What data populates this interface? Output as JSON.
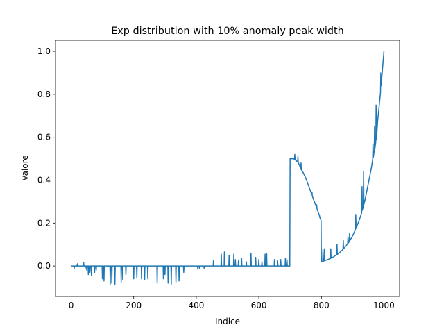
{
  "chart_data": {
    "type": "line",
    "title": "Exp distribution with 10% anomaly peak width",
    "x_label": "Indice",
    "y_label": "Valore",
    "color": "#1f77b4",
    "xlim": [
      -50,
      1050
    ],
    "ylim": [
      -0.142,
      1.052
    ],
    "xticks": [
      0,
      200,
      400,
      600,
      800,
      1000
    ],
    "yticks": [
      {
        "value": 0,
        "label": "0.0"
      },
      {
        "value": 0.2,
        "label": "0.2"
      },
      {
        "value": 0.4,
        "label": "0.4"
      },
      {
        "value": 0.6,
        "label": "0.6"
      },
      {
        "value": 0.8,
        "label": "0.8"
      },
      {
        "value": 1,
        "label": "1.0"
      }
    ],
    "x": [
      0,
      9,
      10,
      11,
      19,
      20,
      21,
      39,
      40,
      41,
      44,
      45,
      46,
      49,
      50,
      51,
      54,
      55,
      56,
      59,
      60,
      61,
      64,
      65,
      66,
      74,
      75,
      76,
      79,
      80,
      81,
      99,
      100,
      101,
      104,
      105,
      106,
      124,
      125,
      126,
      129,
      130,
      131,
      139,
      140,
      141,
      159,
      160,
      161,
      164,
      165,
      166,
      174,
      175,
      176,
      199,
      200,
      201,
      209,
      210,
      211,
      224,
      225,
      226,
      234,
      235,
      236,
      244,
      245,
      246,
      274,
      275,
      276,
      294,
      295,
      296,
      299,
      300,
      301,
      309,
      310,
      311,
      319,
      320,
      321,
      334,
      335,
      336,
      344,
      345,
      346,
      359,
      360,
      361,
      404,
      405,
      406,
      409,
      410,
      411,
      424,
      425,
      426,
      454,
      455,
      456,
      479,
      480,
      481,
      489,
      490,
      491,
      504,
      505,
      506,
      519,
      520,
      521,
      524,
      525,
      526,
      534,
      535,
      536,
      544,
      545,
      546,
      559,
      560,
      561,
      574,
      575,
      576,
      589,
      590,
      591,
      599,
      600,
      601,
      609,
      610,
      611,
      619,
      620,
      621,
      624,
      625,
      626,
      649,
      650,
      651,
      659,
      660,
      661,
      669,
      670,
      671,
      684,
      685,
      686,
      689,
      690,
      691,
      699,
      700,
      710,
      714,
      715,
      716,
      720,
      724,
      725,
      726,
      730,
      734,
      735,
      736,
      740,
      750,
      760,
      769,
      770,
      771,
      780,
      784,
      785,
      786,
      790,
      794,
      795,
      796,
      799,
      800,
      804,
      805,
      806,
      809,
      810,
      811,
      820,
      829,
      830,
      831,
      840,
      849,
      850,
      851,
      860,
      869,
      870,
      871,
      880,
      884,
      885,
      886,
      889,
      890,
      891,
      900,
      909,
      910,
      911,
      920,
      929,
      930,
      931,
      934,
      935,
      936,
      940,
      960,
      964,
      965,
      966,
      969,
      970,
      971,
      974,
      975,
      976,
      980,
      989,
      990,
      991,
      1000
    ],
    "values": [
      0,
      0,
      -0.01,
      0,
      0,
      0.01,
      0,
      0,
      0.015,
      0,
      0,
      -0.01,
      0,
      0,
      -0.02,
      0,
      0,
      -0.04,
      0,
      0,
      -0.03,
      0,
      0,
      -0.045,
      0,
      0,
      -0.03,
      0,
      0,
      -0.02,
      0,
      0,
      -0.06,
      0,
      0,
      -0.07,
      0,
      0,
      -0.085,
      0,
      0,
      -0.08,
      0,
      0,
      -0.085,
      0,
      0,
      -0.075,
      0,
      0,
      -0.065,
      0,
      0,
      -0.04,
      0,
      0,
      -0.06,
      0,
      0,
      -0.055,
      0,
      0,
      -0.06,
      0,
      0,
      -0.065,
      0,
      0,
      -0.06,
      0,
      0,
      -0.08,
      0,
      0,
      -0.06,
      0,
      0,
      -0.04,
      0,
      0,
      -0.08,
      0,
      0,
      -0.085,
      0,
      0,
      -0.075,
      0,
      0,
      -0.07,
      0,
      0,
      -0.03,
      0,
      0,
      -0.015,
      0,
      0,
      -0.01,
      0,
      0,
      -0.01,
      0,
      0,
      0.025,
      0,
      0,
      0.055,
      0,
      0,
      0.065,
      0,
      0,
      0.05,
      0,
      0,
      0.055,
      0,
      0,
      0.03,
      0,
      0,
      0.025,
      0,
      0,
      0.035,
      0,
      0,
      0.02,
      0,
      0,
      0.06,
      0,
      0,
      0.04,
      0,
      0,
      0.03,
      0,
      0,
      0.02,
      0,
      0,
      0.055,
      0,
      0,
      0.06,
      0,
      0,
      0.03,
      0,
      0,
      0.025,
      0,
      0,
      0.03,
      0,
      0,
      0.035,
      0,
      0,
      0.03,
      0,
      0,
      0.5,
      0.5,
      0.497,
      0.52,
      0.495,
      0.49,
      0.485,
      0.51,
      0.482,
      0.47,
      0.452,
      0.48,
      0.448,
      0.44,
      0.41,
      0.37,
      0.334,
      0.345,
      0.326,
      0.29,
      0.274,
      0.285,
      0.266,
      0.25,
      0.234,
      0.225,
      0.226,
      0.21,
      0.02,
      0.0217,
      0.08,
      0.0224,
      0.0238,
      0.08,
      0.0248,
      0.0296,
      0.035,
      0.08,
      0.0363,
      0.0437,
      0.053,
      0.1,
      0.054,
      0.065,
      0.0772,
      0.12,
      0.08,
      0.096,
      0.104,
      0.135,
      0.107,
      0.113,
      0.15,
      0.118,
      0.141,
      0.17,
      0.24,
      0.176,
      0.209,
      0.249,
      0.37,
      0.26,
      0.276,
      0.44,
      0.287,
      0.31,
      0.458,
      0.495,
      0.57,
      0.505,
      0.535,
      0.65,
      0.545,
      0.578,
      0.75,
      0.59,
      0.677,
      0.807,
      0.9,
      0.84,
      1
    ]
  }
}
